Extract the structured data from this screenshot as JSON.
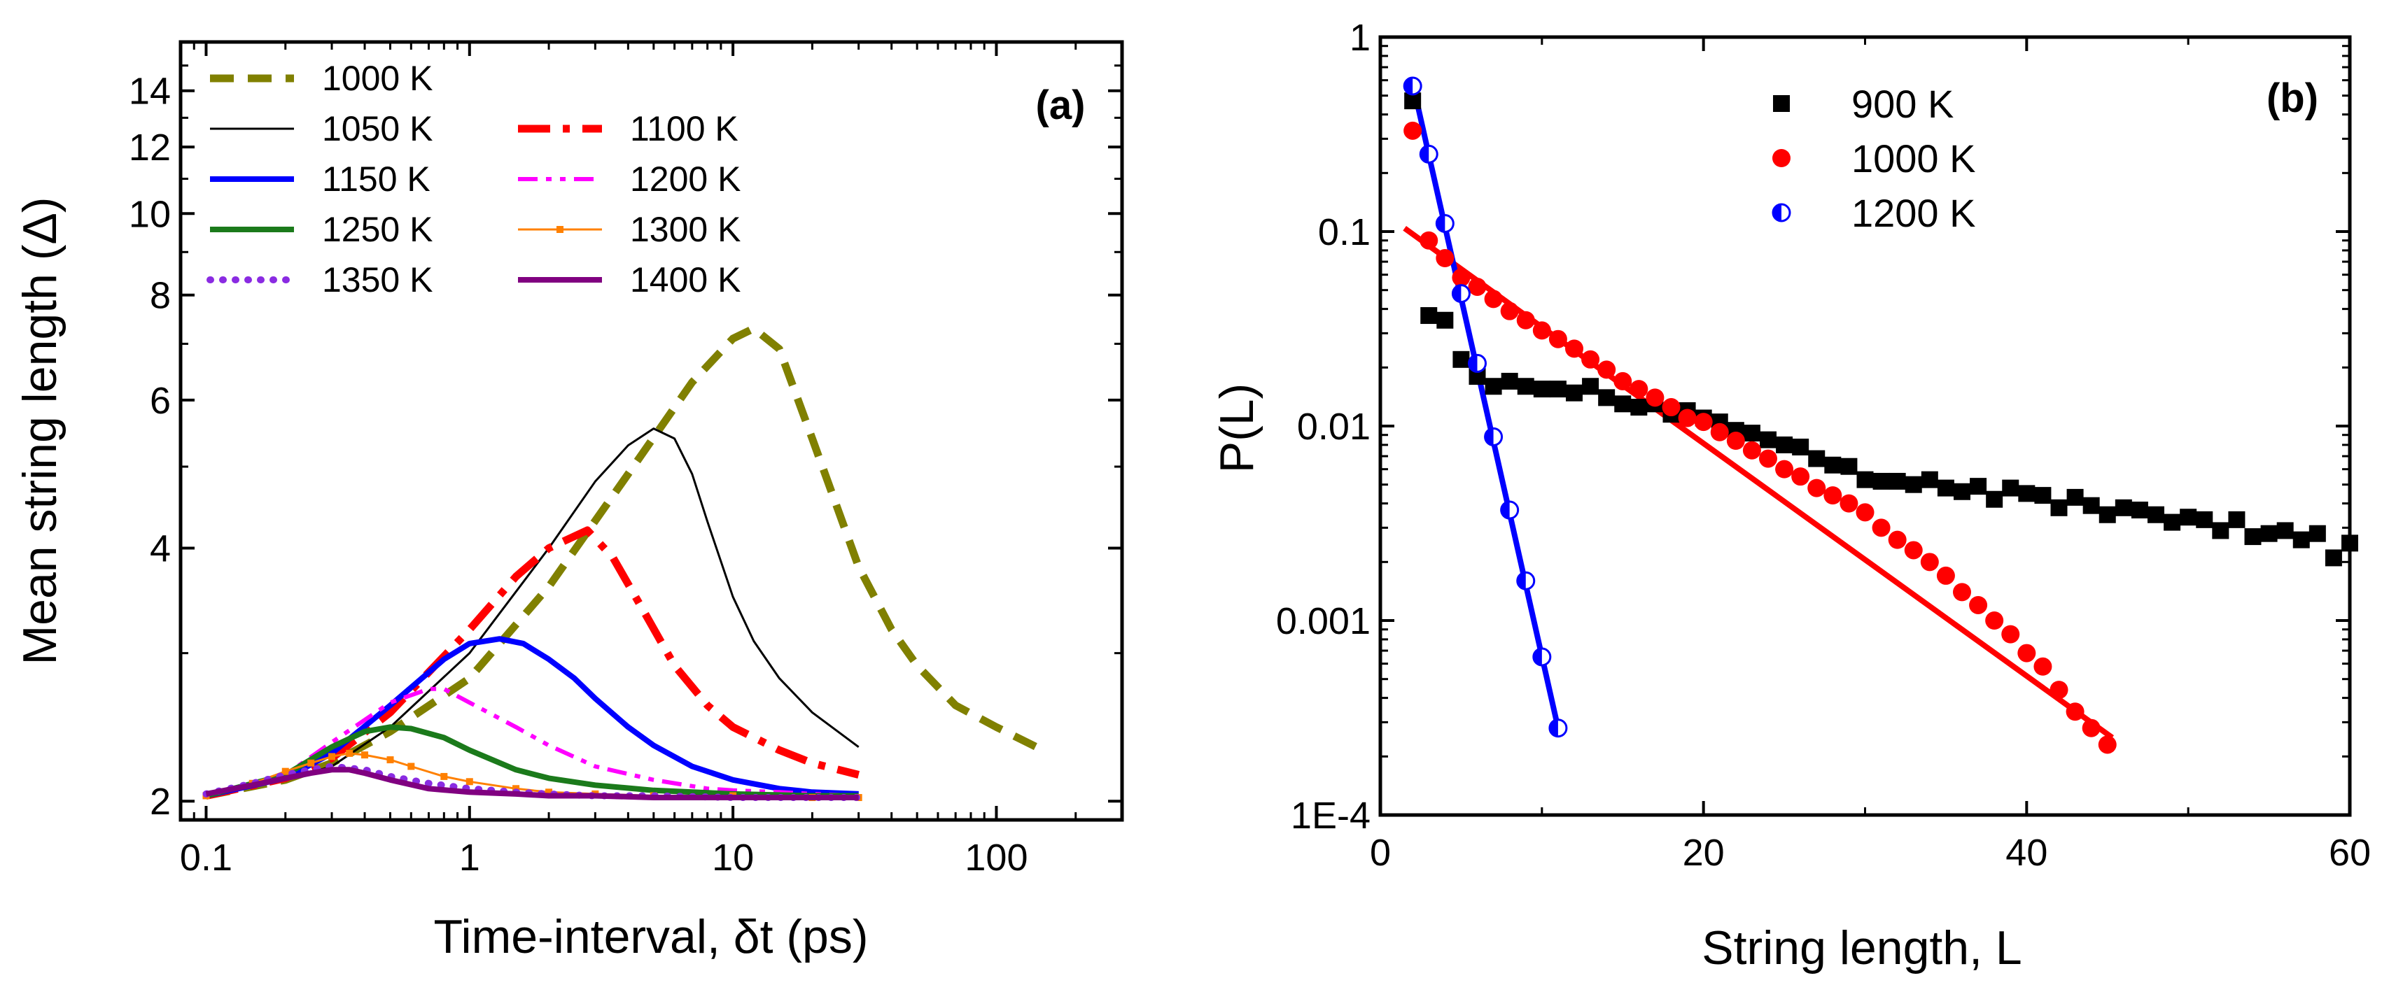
{
  "chart_data": [
    {
      "type": "line",
      "panel_label": "(a)",
      "xlabel": "Time-interval, δt (ps)",
      "ylabel": "Mean string length (Δ)",
      "xscale": "log",
      "yscale": "log",
      "xlim": [
        0.08,
        300
      ],
      "ylim": [
        1.9,
        16
      ],
      "xticks": [
        {
          "value": 0.1,
          "label": "0.1"
        },
        {
          "value": 1,
          "label": "1"
        },
        {
          "value": 10,
          "label": "10"
        },
        {
          "value": 100,
          "label": "100"
        }
      ],
      "yticks": [
        {
          "value": 2,
          "label": "2"
        },
        {
          "value": 4,
          "label": "4"
        },
        {
          "value": 6,
          "label": "6"
        },
        {
          "value": 8,
          "label": "8"
        },
        {
          "value": 10,
          "label": "10"
        },
        {
          "value": 12,
          "label": "12"
        },
        {
          "value": 14,
          "label": "14"
        }
      ],
      "series": [
        {
          "name": "1000 K",
          "color": "#808000",
          "style": "dash",
          "x": [
            0.1,
            0.2,
            0.3,
            0.5,
            1,
            2,
            4,
            7,
            10,
            12,
            15,
            20,
            30,
            40,
            50,
            70,
            100,
            150
          ],
          "y": [
            2.03,
            2.12,
            2.22,
            2.42,
            2.8,
            3.6,
            4.9,
            6.3,
            7.1,
            7.3,
            6.9,
            5.4,
            3.8,
            3.2,
            2.9,
            2.6,
            2.45,
            2.3
          ]
        },
        {
          "name": "1050 K",
          "color": "#000000",
          "style": "thin",
          "x": [
            0.1,
            0.2,
            0.3,
            0.5,
            1,
            2,
            3,
            4,
            5,
            6,
            7,
            8,
            10,
            12,
            15,
            20,
            30
          ],
          "y": [
            2.03,
            2.12,
            2.2,
            2.45,
            3.0,
            4.0,
            4.8,
            5.3,
            5.55,
            5.4,
            4.9,
            4.3,
            3.5,
            3.1,
            2.8,
            2.55,
            2.32
          ]
        },
        {
          "name": "1100 K",
          "color": "#ff0000",
          "style": "dashdot",
          "x": [
            0.1,
            0.2,
            0.3,
            0.5,
            1,
            1.5,
            2,
            2.8,
            3.5,
            4.5,
            6,
            8,
            10,
            15,
            20,
            30
          ],
          "y": [
            2.03,
            2.13,
            2.25,
            2.55,
            3.2,
            3.7,
            4.0,
            4.2,
            3.9,
            3.4,
            2.9,
            2.6,
            2.45,
            2.3,
            2.22,
            2.15
          ]
        },
        {
          "name": "1150 K",
          "color": "#0000ff",
          "style": "thick",
          "x": [
            0.1,
            0.2,
            0.3,
            0.5,
            0.8,
            1.0,
            1.3,
            1.6,
            2,
            2.5,
            3,
            4,
            5,
            7,
            10,
            15,
            20,
            30
          ],
          "y": [
            2.03,
            2.13,
            2.28,
            2.6,
            2.95,
            3.08,
            3.12,
            3.08,
            2.95,
            2.8,
            2.65,
            2.45,
            2.33,
            2.2,
            2.12,
            2.07,
            2.05,
            2.04
          ]
        },
        {
          "name": "1200 K",
          "color": "#ff00ff",
          "style": "dashdotdot",
          "x": [
            0.1,
            0.2,
            0.3,
            0.5,
            0.7,
            0.8,
            1,
            1.5,
            2,
            3,
            5,
            8,
            10,
            15,
            20,
            30
          ],
          "y": [
            2.03,
            2.15,
            2.35,
            2.62,
            2.72,
            2.72,
            2.62,
            2.45,
            2.33,
            2.2,
            2.12,
            2.07,
            2.06,
            2.05,
            2.04,
            2.03
          ]
        },
        {
          "name": "1250 K",
          "color": "#1b7a1b",
          "style": "thick",
          "x": [
            0.1,
            0.2,
            0.3,
            0.4,
            0.5,
            0.6,
            0.8,
            1,
            1.5,
            2,
            3,
            5,
            10,
            20,
            30
          ],
          "y": [
            2.03,
            2.15,
            2.32,
            2.42,
            2.45,
            2.44,
            2.38,
            2.3,
            2.18,
            2.13,
            2.09,
            2.06,
            2.04,
            2.03,
            2.03
          ]
        },
        {
          "name": "1300 K",
          "color": "#ff8000",
          "style": "marker",
          "x": [
            0.1,
            0.15,
            0.2,
            0.25,
            0.3,
            0.35,
            0.4,
            0.5,
            0.6,
            0.8,
            1,
            1.5,
            2,
            3,
            5,
            10,
            20,
            30
          ],
          "y": [
            2.03,
            2.1,
            2.17,
            2.22,
            2.26,
            2.28,
            2.27,
            2.24,
            2.2,
            2.14,
            2.11,
            2.07,
            2.05,
            2.04,
            2.03,
            2.03,
            2.02,
            2.02
          ]
        },
        {
          "name": "1350 K",
          "color": "#8a2be2",
          "style": "dotted",
          "x": [
            0.1,
            0.15,
            0.2,
            0.25,
            0.3,
            0.4,
            0.5,
            0.7,
            1,
            1.5,
            2,
            3,
            5,
            10,
            20,
            30
          ],
          "y": [
            2.04,
            2.1,
            2.15,
            2.18,
            2.2,
            2.18,
            2.14,
            2.1,
            2.07,
            2.05,
            2.04,
            2.03,
            2.03,
            2.02,
            2.02,
            2.02
          ]
        },
        {
          "name": "1400 K",
          "color": "#800080",
          "style": "thick",
          "x": [
            0.1,
            0.15,
            0.2,
            0.25,
            0.3,
            0.35,
            0.4,
            0.5,
            0.7,
            1,
            1.5,
            2,
            3,
            5,
            10,
            20,
            30
          ],
          "y": [
            2.04,
            2.09,
            2.13,
            2.16,
            2.18,
            2.18,
            2.16,
            2.12,
            2.07,
            2.05,
            2.04,
            2.03,
            2.03,
            2.02,
            2.02,
            2.02,
            2.02
          ]
        }
      ]
    },
    {
      "type": "scatter",
      "panel_label": "(b)",
      "xlabel": "String length, L",
      "ylabel": "P(L)",
      "xscale": "linear",
      "yscale": "log",
      "xlim": [
        0,
        60
      ],
      "ylim": [
        0.0001,
        1
      ],
      "xticks": [
        {
          "value": 0,
          "label": "0"
        },
        {
          "value": 20,
          "label": "20"
        },
        {
          "value": 40,
          "label": "40"
        },
        {
          "value": 60,
          "label": "60"
        }
      ],
      "yticks": [
        {
          "value": 0.0001,
          "label": "1E-4"
        },
        {
          "value": 0.001,
          "label": "0.001"
        },
        {
          "value": 0.01,
          "label": "0.01"
        },
        {
          "value": 0.1,
          "label": "0.1"
        },
        {
          "value": 1,
          "label": "1"
        }
      ],
      "series": [
        {
          "name": "900 K",
          "color": "#000000",
          "marker": "square",
          "x": [
            2,
            3,
            4,
            5,
            6,
            7,
            8,
            9,
            10,
            11,
            12,
            13,
            14,
            15,
            16,
            17,
            18,
            19,
            20,
            21,
            22,
            23,
            24,
            25,
            26,
            27,
            28,
            29,
            30,
            31,
            32,
            33,
            34,
            35,
            36,
            37,
            38,
            39,
            40,
            41,
            42,
            43,
            44,
            45,
            46,
            47,
            48,
            49,
            50,
            51,
            52,
            53,
            54,
            55,
            56,
            57,
            58,
            59,
            60
          ],
          "y": [
            0.47,
            0.037,
            0.035,
            0.022,
            0.018,
            0.016,
            0.017,
            0.016,
            0.0155,
            0.0155,
            0.0148,
            0.016,
            0.014,
            0.013,
            0.0125,
            0.013,
            0.0115,
            0.012,
            0.011,
            0.0105,
            0.0095,
            0.0092,
            0.0085,
            0.008,
            0.0078,
            0.0068,
            0.0063,
            0.0062,
            0.0053,
            0.0052,
            0.0052,
            0.005,
            0.0053,
            0.0048,
            0.0046,
            0.0049,
            0.0042,
            0.0048,
            0.0045,
            0.0044,
            0.0038,
            0.0043,
            0.0039,
            0.0035,
            0.0038,
            0.0037,
            0.0035,
            0.0032,
            0.0034,
            0.0033,
            0.0029,
            0.0033,
            0.0027,
            0.0028,
            0.0029,
            0.0026,
            0.0028,
            0.0021,
            0.0025
          ]
        },
        {
          "name": "1000 K",
          "color": "#ff0000",
          "marker": "circle",
          "x": [
            2,
            3,
            4,
            5,
            6,
            7,
            8,
            9,
            10,
            11,
            12,
            13,
            14,
            15,
            16,
            17,
            18,
            19,
            20,
            21,
            22,
            23,
            24,
            25,
            26,
            27,
            28,
            29,
            30,
            31,
            32,
            33,
            34,
            35,
            36,
            37,
            38,
            39,
            40,
            41,
            42,
            43,
            44,
            45
          ],
          "y": [
            0.33,
            0.09,
            0.073,
            0.058,
            0.052,
            0.045,
            0.039,
            0.035,
            0.031,
            0.028,
            0.025,
            0.022,
            0.0195,
            0.017,
            0.0155,
            0.014,
            0.0125,
            0.011,
            0.0105,
            0.0093,
            0.0084,
            0.0075,
            0.0068,
            0.006,
            0.0055,
            0.0048,
            0.0044,
            0.004,
            0.0036,
            0.003,
            0.0026,
            0.0023,
            0.002,
            0.0017,
            0.0014,
            0.0012,
            0.001,
            0.00085,
            0.00068,
            0.00058,
            0.00044,
            0.00034,
            0.00028,
            0.00023
          ]
        },
        {
          "name": "1200 K",
          "color": "#0000ff",
          "marker": "halfcircle",
          "x": [
            2,
            3,
            4,
            5,
            6,
            7,
            8,
            9,
            10,
            11
          ],
          "y": [
            0.56,
            0.25,
            0.11,
            0.048,
            0.021,
            0.0088,
            0.0037,
            0.0016,
            0.00065,
            0.00028
          ]
        }
      ],
      "fits": [
        {
          "series": "1000 K",
          "color": "#ff0000",
          "x": [
            1.5,
            45.3
          ],
          "y": [
            0.104,
            0.00025
          ]
        },
        {
          "series": "1200 K",
          "color": "#0000ff",
          "x": [
            2,
            11
          ],
          "y": [
            0.58,
            0.00028
          ]
        }
      ]
    }
  ]
}
